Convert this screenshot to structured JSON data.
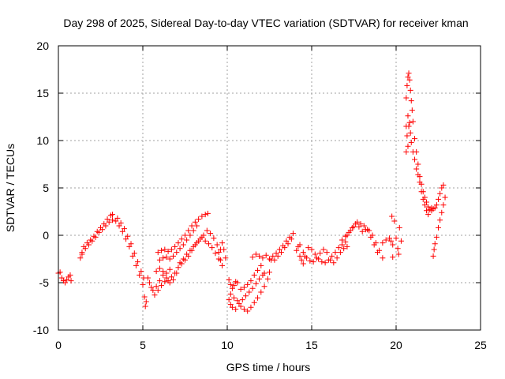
{
  "chart_data": {
    "type": "scatter",
    "title": "Day 298 of 2025, Sidereal Day-to-day VTEC variation (SDTVAR) for receiver kman",
    "xlabel": "GPS time / hours",
    "ylabel": "SDTVAR / TECUs",
    "xlim": [
      0,
      25
    ],
    "ylim": [
      -10,
      20
    ],
    "xticks": [
      0,
      5,
      10,
      15,
      20,
      25
    ],
    "yticks": [
      -10,
      -5,
      0,
      5,
      10,
      15,
      20
    ],
    "grid": true,
    "marker": "plus",
    "color": "#ff0000",
    "series": [
      {
        "name": "SDTVAR",
        "points": [
          [
            0.0,
            -4.0
          ],
          [
            0.1,
            -3.9
          ],
          [
            0.2,
            -4.5
          ],
          [
            0.3,
            -4.8
          ],
          [
            0.4,
            -5.0
          ],
          [
            0.5,
            -4.7
          ],
          [
            0.6,
            -4.4
          ],
          [
            0.7,
            -4.2
          ],
          [
            0.75,
            -4.8
          ],
          [
            1.3,
            -2.4
          ],
          [
            1.4,
            -1.8
          ],
          [
            1.5,
            -1.2
          ],
          [
            1.7,
            -0.8
          ],
          [
            1.9,
            -0.5
          ],
          [
            2.1,
            -0.1
          ],
          [
            2.3,
            0.4
          ],
          [
            2.5,
            0.8
          ],
          [
            2.7,
            1.2
          ],
          [
            2.9,
            1.7
          ],
          [
            3.1,
            2.1
          ],
          [
            3.2,
            2.2
          ],
          [
            1.4,
            -2.0
          ],
          [
            1.6,
            -1.4
          ],
          [
            1.8,
            -1.0
          ],
          [
            2.0,
            -0.6
          ],
          [
            2.2,
            -0.2
          ],
          [
            2.4,
            0.3
          ],
          [
            2.6,
            0.6
          ],
          [
            2.8,
            1.0
          ],
          [
            3.0,
            1.4
          ],
          [
            3.2,
            1.6
          ],
          [
            3.4,
            1.5
          ],
          [
            3.6,
            1.0
          ],
          [
            3.8,
            0.4
          ],
          [
            4.0,
            -0.4
          ],
          [
            4.2,
            -1.2
          ],
          [
            4.4,
            -2.2
          ],
          [
            4.6,
            -3.2
          ],
          [
            4.8,
            -4.2
          ],
          [
            5.0,
            -5.2
          ],
          [
            5.1,
            -6.5
          ],
          [
            5.15,
            -7.5
          ],
          [
            5.2,
            -7.0
          ],
          [
            3.5,
            1.8
          ],
          [
            3.7,
            1.3
          ],
          [
            3.9,
            0.7
          ],
          [
            4.1,
            -0.1
          ],
          [
            4.3,
            -0.9
          ],
          [
            4.5,
            -1.9
          ],
          [
            4.7,
            -2.8
          ],
          [
            4.9,
            -3.8
          ],
          [
            5.05,
            -4.5
          ],
          [
            5.3,
            -4.5
          ],
          [
            5.5,
            -5.5
          ],
          [
            5.7,
            -6.3
          ],
          [
            5.9,
            -5.8
          ],
          [
            6.1,
            -5.3
          ],
          [
            6.3,
            -4.9
          ],
          [
            6.5,
            -4.8
          ],
          [
            6.7,
            -4.4
          ],
          [
            6.9,
            -4.0
          ],
          [
            7.1,
            -3.4
          ],
          [
            7.3,
            -3.0
          ],
          [
            7.5,
            -2.6
          ],
          [
            7.7,
            -2.2
          ],
          [
            7.9,
            -1.6
          ],
          [
            8.1,
            -1.0
          ],
          [
            8.3,
            -0.6
          ],
          [
            5.4,
            -5.0
          ],
          [
            5.6,
            -5.8
          ],
          [
            5.8,
            -5.4
          ],
          [
            6.0,
            -4.8
          ],
          [
            6.2,
            -4.2
          ],
          [
            6.4,
            -4.5
          ],
          [
            6.6,
            -5.0
          ],
          [
            6.8,
            -4.7
          ],
          [
            7.0,
            -4.0
          ],
          [
            5.8,
            -3.8
          ],
          [
            6.0,
            -3.5
          ],
          [
            6.2,
            -3.8
          ],
          [
            6.4,
            -4.0
          ],
          [
            6.6,
            -3.6
          ],
          [
            5.9,
            -1.8
          ],
          [
            6.1,
            -1.6
          ],
          [
            6.3,
            -1.5
          ],
          [
            6.5,
            -1.7
          ],
          [
            6.7,
            -1.5
          ],
          [
            6.9,
            -1.2
          ],
          [
            7.1,
            -0.8
          ],
          [
            7.3,
            -0.4
          ],
          [
            7.5,
            0.0
          ],
          [
            7.7,
            0.5
          ],
          [
            7.9,
            1.0
          ],
          [
            8.1,
            1.4
          ],
          [
            8.3,
            1.7
          ],
          [
            8.5,
            2.0
          ],
          [
            8.7,
            2.2
          ],
          [
            8.85,
            2.3
          ],
          [
            6.0,
            -2.6
          ],
          [
            6.2,
            -2.4
          ],
          [
            6.4,
            -2.3
          ],
          [
            6.6,
            -2.5
          ],
          [
            6.8,
            -2.2
          ],
          [
            7.0,
            -1.8
          ],
          [
            7.2,
            -1.4
          ],
          [
            7.4,
            -1.0
          ],
          [
            7.6,
            -0.5
          ],
          [
            7.8,
            0.0
          ],
          [
            8.0,
            0.5
          ],
          [
            8.2,
            1.0
          ],
          [
            7.2,
            -2.9
          ],
          [
            7.4,
            -2.5
          ],
          [
            7.6,
            -2.0
          ],
          [
            7.8,
            -1.6
          ],
          [
            8.0,
            -1.2
          ],
          [
            8.2,
            -0.8
          ],
          [
            8.4,
            -0.4
          ],
          [
            8.6,
            0.0
          ],
          [
            8.8,
            0.5
          ],
          [
            9.0,
            0.2
          ],
          [
            9.2,
            -0.3
          ],
          [
            9.4,
            -1.0
          ],
          [
            9.5,
            -1.8
          ],
          [
            9.6,
            -2.6
          ],
          [
            9.7,
            -3.2
          ],
          [
            8.5,
            -0.2
          ],
          [
            8.7,
            -0.6
          ],
          [
            8.9,
            -0.9
          ],
          [
            9.1,
            -1.3
          ],
          [
            9.3,
            -1.9
          ],
          [
            9.5,
            -2.5
          ],
          [
            9.6,
            -1.5
          ],
          [
            9.7,
            -0.8
          ],
          [
            9.8,
            -1.5
          ],
          [
            9.9,
            -2.4
          ],
          [
            10.1,
            -4.7
          ],
          [
            10.2,
            -5.2
          ],
          [
            10.3,
            -5.6
          ],
          [
            10.4,
            -5.3
          ],
          [
            10.5,
            -4.9
          ],
          [
            10.6,
            -5.0
          ],
          [
            10.8,
            -5.7
          ],
          [
            11.0,
            -5.5
          ],
          [
            11.2,
            -5.2
          ],
          [
            11.4,
            -4.8
          ],
          [
            11.6,
            -4.2
          ],
          [
            11.8,
            -3.7
          ],
          [
            12.0,
            -3.2
          ],
          [
            12.2,
            -4.0
          ],
          [
            10.1,
            -6.8
          ],
          [
            10.2,
            -7.3
          ],
          [
            10.3,
            -7.6
          ],
          [
            10.5,
            -7.8
          ],
          [
            10.7,
            -7.2
          ],
          [
            10.9,
            -6.8
          ],
          [
            11.1,
            -6.4
          ],
          [
            11.3,
            -6.0
          ],
          [
            11.5,
            -5.6
          ],
          [
            11.7,
            -5.1
          ],
          [
            11.9,
            -4.6
          ],
          [
            12.1,
            -4.2
          ],
          [
            10.2,
            -6.2
          ],
          [
            10.4,
            -6.6
          ],
          [
            10.6,
            -6.9
          ],
          [
            10.8,
            -7.5
          ],
          [
            11.0,
            -7.8
          ],
          [
            11.2,
            -8.0
          ],
          [
            11.4,
            -7.6
          ],
          [
            11.6,
            -7.1
          ],
          [
            11.8,
            -6.6
          ],
          [
            12.0,
            -6.0
          ],
          [
            12.2,
            -5.4
          ],
          [
            12.4,
            -4.6
          ],
          [
            12.5,
            -3.9
          ],
          [
            11.5,
            -2.3
          ],
          [
            11.7,
            -2.0
          ],
          [
            11.9,
            -2.2
          ],
          [
            12.1,
            -2.4
          ],
          [
            12.3,
            -2.1
          ],
          [
            12.5,
            -2.5
          ],
          [
            12.6,
            -2.6
          ],
          [
            12.7,
            -2.2
          ],
          [
            12.9,
            -1.9
          ],
          [
            13.1,
            -1.5
          ],
          [
            13.3,
            -1.1
          ],
          [
            13.5,
            -0.6
          ],
          [
            13.7,
            -0.2
          ],
          [
            13.9,
            0.2
          ],
          [
            12.8,
            -2.6
          ],
          [
            13.0,
            -2.2
          ],
          [
            13.2,
            -1.8
          ],
          [
            13.4,
            -1.3
          ],
          [
            13.6,
            -0.9
          ],
          [
            13.8,
            -0.4
          ],
          [
            14.1,
            -1.6
          ],
          [
            14.2,
            -1.2
          ],
          [
            14.3,
            -2.2
          ],
          [
            14.4,
            -2.6
          ],
          [
            14.5,
            -3.0
          ],
          [
            14.6,
            -2.2
          ],
          [
            14.8,
            -1.3
          ],
          [
            15.0,
            -1.5
          ],
          [
            15.2,
            -2.0
          ],
          [
            15.4,
            -2.5
          ],
          [
            15.6,
            -2.8
          ],
          [
            15.8,
            -2.9
          ],
          [
            16.0,
            -2.6
          ],
          [
            16.2,
            -2.2
          ],
          [
            16.4,
            -1.8
          ],
          [
            16.6,
            -1.3
          ],
          [
            16.8,
            -1.0
          ],
          [
            17.0,
            -0.7
          ],
          [
            14.3,
            -1.0
          ],
          [
            14.5,
            -1.8
          ],
          [
            14.7,
            -2.4
          ],
          [
            14.9,
            -2.7
          ],
          [
            15.1,
            -2.8
          ],
          [
            15.3,
            -2.4
          ],
          [
            15.5,
            -1.9
          ],
          [
            15.7,
            -1.5
          ],
          [
            15.9,
            -1.8
          ],
          [
            16.1,
            -2.6
          ],
          [
            16.3,
            -2.9
          ],
          [
            16.5,
            -2.4
          ],
          [
            16.7,
            -1.8
          ],
          [
            16.9,
            -1.4
          ],
          [
            17.1,
            -1.2
          ],
          [
            16.8,
            -0.5
          ],
          [
            17.0,
            -0.1
          ],
          [
            17.2,
            0.3
          ],
          [
            17.4,
            0.8
          ],
          [
            17.6,
            1.2
          ],
          [
            17.8,
            0.9
          ],
          [
            18.0,
            0.4
          ],
          [
            18.2,
            0.6
          ],
          [
            18.4,
            0.5
          ],
          [
            18.6,
            0.0
          ],
          [
            18.8,
            -0.8
          ],
          [
            19.0,
            -1.6
          ],
          [
            19.2,
            -2.4
          ],
          [
            17.1,
            0.0
          ],
          [
            17.3,
            0.5
          ],
          [
            17.5,
            0.9
          ],
          [
            17.7,
            1.4
          ],
          [
            17.9,
            1.2
          ],
          [
            18.1,
            1.0
          ],
          [
            18.3,
            0.6
          ],
          [
            18.5,
            -0.2
          ],
          [
            18.7,
            -1.0
          ],
          [
            18.9,
            -1.8
          ],
          [
            19.2,
            -0.8
          ],
          [
            19.4,
            -0.5
          ],
          [
            19.6,
            -0.3
          ],
          [
            19.7,
            -0.6
          ],
          [
            19.8,
            -1.0
          ],
          [
            19.9,
            1.5
          ],
          [
            20.0,
            -0.3
          ],
          [
            20.1,
            -1.4
          ],
          [
            20.2,
            0.8
          ],
          [
            20.3,
            -0.6
          ],
          [
            19.75,
            2.0
          ],
          [
            19.8,
            -2.3
          ],
          [
            20.15,
            -2.0
          ],
          [
            20.6,
            14.5
          ],
          [
            20.65,
            15.8
          ],
          [
            20.7,
            16.7
          ],
          [
            20.75,
            17.1
          ],
          [
            20.8,
            16.4
          ],
          [
            20.85,
            15.3
          ],
          [
            20.9,
            14.2
          ],
          [
            20.95,
            13.2
          ],
          [
            21.0,
            12.0
          ],
          [
            21.1,
            10.2
          ],
          [
            21.2,
            8.8
          ],
          [
            21.3,
            7.5
          ],
          [
            21.4,
            6.2
          ],
          [
            21.5,
            5.4
          ],
          [
            21.6,
            4.6
          ],
          [
            21.7,
            4.0
          ],
          [
            21.8,
            3.5
          ],
          [
            21.9,
            3.0
          ],
          [
            22.0,
            2.7
          ],
          [
            22.1,
            2.6
          ],
          [
            20.6,
            11.5
          ],
          [
            20.65,
            10.5
          ],
          [
            20.7,
            12.6
          ],
          [
            20.75,
            11.5
          ],
          [
            20.8,
            11.9
          ],
          [
            20.85,
            10.8
          ],
          [
            20.9,
            9.8
          ],
          [
            21.0,
            8.8
          ],
          [
            21.1,
            8.0
          ],
          [
            21.2,
            7.0
          ],
          [
            21.3,
            6.4
          ],
          [
            21.4,
            5.6
          ],
          [
            21.5,
            4.6
          ],
          [
            21.6,
            3.8
          ],
          [
            21.7,
            3.2
          ],
          [
            21.8,
            2.6
          ],
          [
            21.9,
            2.2
          ],
          [
            20.6,
            8.8
          ],
          [
            20.7,
            9.4
          ],
          [
            22.1,
            2.9
          ],
          [
            22.2,
            2.8
          ],
          [
            22.3,
            2.9
          ],
          [
            22.4,
            3.2
          ],
          [
            22.5,
            3.8
          ],
          [
            22.6,
            4.4
          ],
          [
            22.7,
            5.0
          ],
          [
            22.8,
            5.3
          ],
          [
            22.2,
            -2.2
          ],
          [
            22.25,
            -1.5
          ],
          [
            22.3,
            -0.9
          ],
          [
            22.4,
            -0.2
          ],
          [
            22.5,
            0.8
          ],
          [
            22.6,
            1.6
          ],
          [
            22.7,
            2.4
          ],
          [
            22.8,
            3.2
          ],
          [
            22.9,
            4.0
          ]
        ]
      }
    ]
  }
}
